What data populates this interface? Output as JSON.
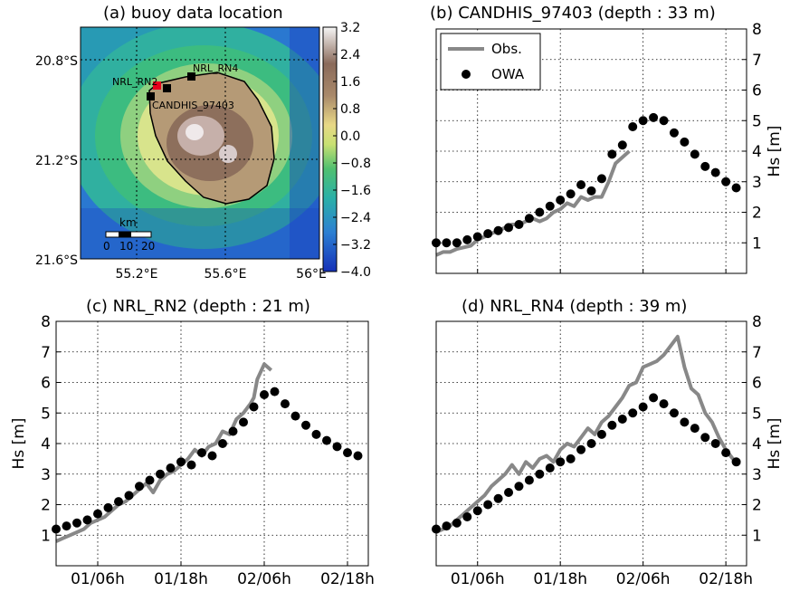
{
  "figure": {
    "panels": [
      {
        "title": "(a) buoy data location"
      },
      {
        "title": "(b) CANDHIS_97403 (depth : 33 m)"
      },
      {
        "title": "(c) NRL_RN2 (depth : 21 m)"
      },
      {
        "title": "(d) NRL_RN4 (depth : 39 m)"
      }
    ]
  },
  "chart_data": [
    {
      "type": "heatmap",
      "title": "(a) buoy data location",
      "x_ticks": [
        "55.2°E",
        "55.6°E",
        "56°E"
      ],
      "y_ticks": [
        "20.8°S",
        "21.2°S",
        "21.6°S"
      ],
      "colorbar_ticks": [
        "3.2",
        "2.4",
        "1.6",
        "0.8",
        "0.0",
        "−0.8",
        "−1.6",
        "−2.4",
        "−3.2",
        "−4.0"
      ],
      "colorbar_range": [
        -4.0,
        3.2
      ],
      "stations": [
        {
          "label": "NRL_RN2",
          "marker_color": "#e8001c"
        },
        {
          "label": "NRL_RN4",
          "marker_color": "#000000"
        },
        {
          "label": "CANDHIS_97403",
          "marker_color": "#000000"
        }
      ],
      "scale_bar": {
        "unit": "km",
        "labels": [
          "0",
          "10",
          "20"
        ]
      },
      "grid": true
    },
    {
      "type": "line",
      "title": "(b) CANDHIS_97403 (depth : 33 m)",
      "ylabel": "Hs [m]",
      "ylim": [
        0,
        8
      ],
      "y_ticks": [
        "1",
        "2",
        "3",
        "4",
        "5",
        "6",
        "7",
        "8"
      ],
      "xlim": [
        0,
        45
      ],
      "x_ticks": [
        6,
        18,
        30,
        42
      ],
      "legend": {
        "position": "top-left",
        "entries": [
          "Obs.",
          "OWA"
        ]
      },
      "grid": true,
      "series": [
        {
          "name": "Obs.",
          "style": "line",
          "color": "#888888",
          "x": [
            0,
            1,
            2,
            3,
            4,
            5,
            6,
            7,
            8,
            9,
            10,
            11,
            12,
            13,
            14,
            15,
            16,
            17,
            18,
            19,
            20,
            21,
            22,
            23,
            24,
            25,
            26,
            27,
            28
          ],
          "y": [
            0.6,
            0.7,
            0.7,
            0.8,
            0.85,
            0.9,
            1.1,
            1.2,
            1.3,
            1.4,
            1.5,
            1.6,
            1.6,
            1.7,
            1.8,
            1.7,
            1.8,
            2.0,
            2.1,
            2.3,
            2.2,
            2.5,
            2.4,
            2.5,
            2.5,
            3.0,
            3.6,
            3.8,
            4.0
          ]
        },
        {
          "name": "OWA",
          "style": "marker",
          "color": "#000000",
          "x": [
            0,
            1.5,
            3,
            4.5,
            6,
            7.5,
            9,
            10.5,
            12,
            13.5,
            15,
            16.5,
            18,
            19.5,
            21,
            22.5,
            24,
            25.5,
            27,
            28.5,
            30,
            31.5,
            33,
            34.5,
            36,
            37.5,
            39,
            40.5,
            42,
            43.5
          ],
          "y": [
            1.0,
            1.0,
            1.0,
            1.1,
            1.2,
            1.3,
            1.4,
            1.5,
            1.6,
            1.8,
            2.0,
            2.2,
            2.4,
            2.6,
            2.9,
            2.7,
            3.1,
            3.9,
            4.2,
            4.8,
            5.0,
            5.1,
            5.0,
            4.6,
            4.3,
            3.9,
            3.5,
            3.3,
            3.0,
            2.8
          ]
        }
      ]
    },
    {
      "type": "line",
      "title": "(c) NRL_RN2 (depth : 21 m)",
      "ylabel": "Hs [m]",
      "ylim": [
        0,
        8
      ],
      "y_ticks": [
        "1",
        "2",
        "3",
        "4",
        "5",
        "6",
        "7",
        "8"
      ],
      "xlim": [
        0,
        45
      ],
      "x_ticks": [
        6,
        18,
        30,
        42
      ],
      "x_tick_labels": [
        "01/06h",
        "01/18h",
        "02/06h",
        "02/18h"
      ],
      "grid": true,
      "series": [
        {
          "name": "Obs.",
          "style": "line",
          "color": "#888888",
          "x": [
            0,
            1,
            2,
            3,
            4,
            5,
            6,
            7,
            8,
            9,
            10,
            11,
            12,
            13,
            14,
            15,
            16,
            17,
            18,
            19,
            20,
            21,
            22,
            23,
            24,
            25,
            26,
            27,
            28,
            28.5,
            29,
            30,
            31
          ],
          "y": [
            0.8,
            0.9,
            1.0,
            1.1,
            1.2,
            1.4,
            1.5,
            1.6,
            1.8,
            2.0,
            2.1,
            2.3,
            2.5,
            2.7,
            2.4,
            2.8,
            3.0,
            3.1,
            3.3,
            3.5,
            3.8,
            3.6,
            3.9,
            4.0,
            4.4,
            4.3,
            4.8,
            5.0,
            5.3,
            5.5,
            6.1,
            6.6,
            6.4
          ]
        },
        {
          "name": "OWA",
          "style": "marker",
          "color": "#000000",
          "x": [
            0,
            1.5,
            3,
            4.5,
            6,
            7.5,
            9,
            10.5,
            12,
            13.5,
            15,
            16.5,
            18,
            19.5,
            21,
            22.5,
            24,
            25.5,
            27,
            28.5,
            30,
            31.5,
            33,
            34.5,
            36,
            37.5,
            39,
            40.5,
            42,
            43.5
          ],
          "y": [
            1.2,
            1.3,
            1.4,
            1.5,
            1.7,
            1.9,
            2.1,
            2.3,
            2.6,
            2.8,
            3.0,
            3.2,
            3.4,
            3.3,
            3.7,
            3.6,
            4.0,
            4.4,
            4.7,
            5.2,
            5.6,
            5.7,
            5.3,
            4.9,
            4.6,
            4.3,
            4.1,
            3.9,
            3.7,
            3.6
          ]
        }
      ]
    },
    {
      "type": "line",
      "title": "(d) NRL_RN4 (depth : 39 m)",
      "ylabel": "Hs [m]",
      "ylim": [
        0,
        8
      ],
      "y_ticks": [
        "1",
        "2",
        "3",
        "4",
        "5",
        "6",
        "7",
        "8"
      ],
      "xlim": [
        0,
        45
      ],
      "x_ticks": [
        6,
        18,
        30,
        42
      ],
      "x_tick_labels": [
        "01/06h",
        "01/18h",
        "02/06h",
        "02/18h"
      ],
      "grid": true,
      "series": [
        {
          "name": "Obs.",
          "style": "line",
          "color": "#888888",
          "x": [
            0,
            1,
            2,
            3,
            4,
            5,
            6,
            7,
            8,
            9,
            10,
            11,
            12,
            13,
            14,
            15,
            16,
            17,
            18,
            19,
            20,
            21,
            22,
            23,
            24,
            25,
            26,
            27,
            28,
            29,
            30,
            31,
            32,
            33,
            34,
            35,
            36,
            37,
            38,
            39,
            40,
            41,
            42,
            43,
            44
          ],
          "y": [
            1.1,
            1.2,
            1.3,
            1.5,
            1.7,
            1.9,
            2.1,
            2.3,
            2.6,
            2.8,
            3.0,
            3.3,
            3.0,
            3.4,
            3.2,
            3.5,
            3.6,
            3.4,
            3.8,
            4.0,
            3.9,
            4.2,
            4.5,
            4.3,
            4.7,
            4.9,
            5.2,
            5.5,
            5.9,
            6.0,
            6.5,
            6.6,
            6.7,
            6.9,
            7.2,
            7.5,
            6.5,
            5.8,
            5.6,
            5.0,
            4.7,
            4.2,
            3.8,
            3.5,
            3.3
          ]
        },
        {
          "name": "OWA",
          "style": "marker",
          "color": "#000000",
          "x": [
            0,
            1.5,
            3,
            4.5,
            6,
            7.5,
            9,
            10.5,
            12,
            13.5,
            15,
            16.5,
            18,
            19.5,
            21,
            22.5,
            24,
            25.5,
            27,
            28.5,
            30,
            31.5,
            33,
            34.5,
            36,
            37.5,
            39,
            40.5,
            42,
            43.5
          ],
          "y": [
            1.2,
            1.3,
            1.4,
            1.6,
            1.8,
            2.0,
            2.2,
            2.4,
            2.6,
            2.8,
            3.0,
            3.2,
            3.4,
            3.5,
            3.8,
            4.0,
            4.3,
            4.6,
            4.8,
            5.0,
            5.2,
            5.5,
            5.3,
            5.0,
            4.7,
            4.5,
            4.2,
            4.0,
            3.7,
            3.4
          ]
        }
      ]
    }
  ]
}
